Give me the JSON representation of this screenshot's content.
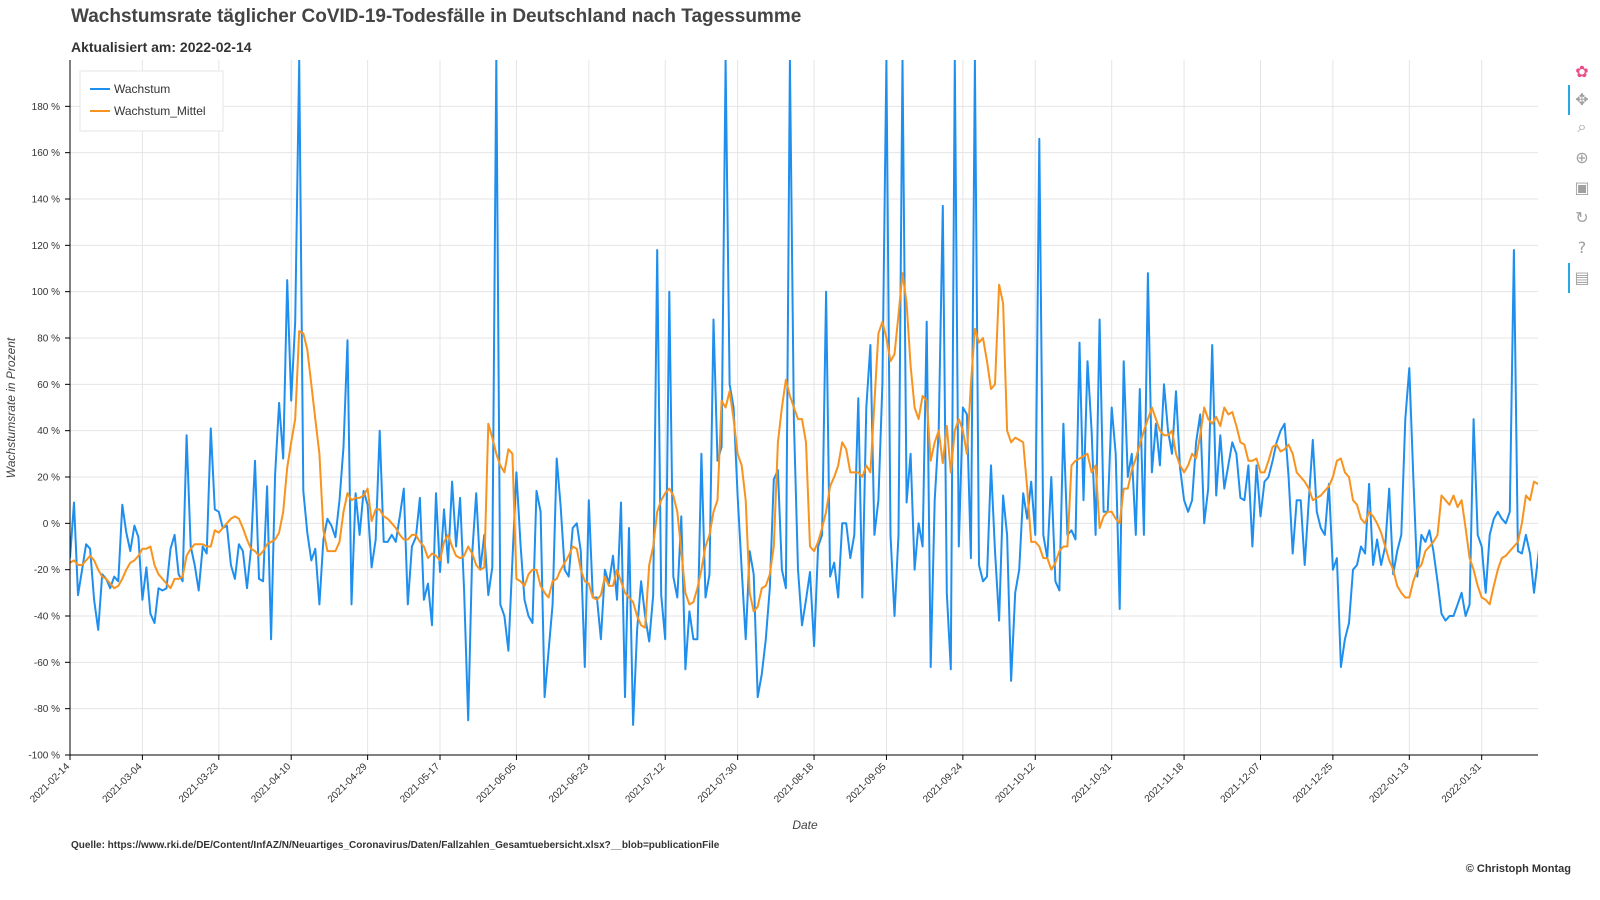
{
  "header": {
    "title": "Wachstumsrate täglicher CoVID-19-Todesfälle in Deutschland nach Tagessumme",
    "subtitle": "Aktualisiert am: 2022-02-14"
  },
  "footer": {
    "source": "Quelle: https://www.rki.de/DE/Content/InfAZ/N/Neuartiges_Coronavirus/Daten/Fallzahlen_Gesamtuebersicht.xlsx?__blob=publicationFile",
    "copyright": "© Christoph Montag"
  },
  "toolbar": {
    "tools": [
      {
        "icon": "bokeh-logo-icon",
        "glyph": "✿"
      },
      {
        "icon": "pan-icon",
        "glyph": "✥"
      },
      {
        "icon": "box-zoom-icon",
        "glyph": "⌕"
      },
      {
        "icon": "wheel-zoom-icon",
        "glyph": "⊕"
      },
      {
        "icon": "save-icon",
        "glyph": "▣"
      },
      {
        "icon": "reset-icon",
        "glyph": "↻"
      },
      {
        "icon": "help-icon",
        "glyph": "?"
      },
      {
        "icon": "hover-icon",
        "glyph": "▤"
      }
    ]
  },
  "chart_data": {
    "type": "line",
    "title": "Wachstumsrate täglicher CoVID-19-Todesfälle in Deutschland nach Tagessumme",
    "subtitle": "Aktualisiert am: 2022-02-14",
    "xlabel": "Date",
    "ylabel": "Wachstumsrate in Prozent",
    "x_range": [
      "2021-02-14",
      "2022-02-14"
    ],
    "ylim": [
      -100,
      200
    ],
    "y_ticks": [
      -100,
      -80,
      -60,
      -40,
      -20,
      0,
      20,
      40,
      60,
      80,
      100,
      120,
      140,
      160,
      180
    ],
    "y_tick_labels": [
      "-100 %",
      "-80 %",
      "-60 %",
      "-40 %",
      "-20 %",
      "0 %",
      "20 %",
      "40 %",
      "60 %",
      "80 %",
      "100 %",
      "120 %",
      "140 %",
      "160 %",
      "180 %"
    ],
    "x_ticks": [
      "2021-02-14",
      "2021-03-04",
      "2021-03-23",
      "2021-04-10",
      "2021-04-29",
      "2021-05-17",
      "2021-06-05",
      "2021-06-23",
      "2021-07-12",
      "2021-07-30",
      "2021-08-18",
      "2021-09-05",
      "2021-09-24",
      "2021-10-12",
      "2021-10-31",
      "2021-11-18",
      "2021-12-07",
      "2021-12-25",
      "2022-01-13",
      "2022-01-31"
    ],
    "grid": true,
    "legend_position": "top-left",
    "series": [
      {
        "name": "Wachstum",
        "color": "#1f8fef",
        "x_start": "2021-02-14",
        "step_days": 1,
        "values": [
          -15,
          9,
          -31,
          -20,
          -9,
          -11,
          -33,
          -46,
          -22,
          -24,
          -28,
          -23,
          -25,
          8,
          -4,
          -12,
          -1,
          -6,
          -33,
          -19,
          -39,
          -43,
          -28,
          -29,
          -28,
          -11,
          -5,
          -22,
          -25,
          38,
          -10,
          -18,
          -29,
          -10,
          -13,
          41,
          6,
          5,
          -2,
          -1,
          -18,
          -24,
          -9,
          -12,
          -28,
          -11,
          27,
          -24,
          -25,
          16,
          -50,
          21,
          52,
          28,
          105,
          53,
          87,
          200,
          14,
          -4,
          -16,
          -11,
          -35,
          -7,
          2,
          -1,
          -6,
          10,
          33,
          79,
          -35,
          13,
          -5,
          14,
          8,
          -19,
          -7,
          40,
          -8,
          -8,
          -5,
          -8,
          3,
          15,
          -35,
          -10,
          -6,
          11,
          -33,
          -26,
          -44,
          13,
          -21,
          6,
          -17,
          18,
          -10,
          11,
          -29,
          -85,
          -13,
          13,
          -20,
          -5,
          -31,
          -19,
          200,
          -35,
          -40,
          -55,
          -16,
          22,
          -9,
          -33,
          -40,
          -43,
          14,
          5,
          -75,
          -55,
          -35,
          28,
          7,
          -20,
          -23,
          -2,
          0,
          -12,
          -62,
          10,
          -32,
          -32,
          -50,
          -20,
          -26,
          -14,
          -33,
          9,
          -75,
          -2,
          -87,
          -46,
          -25,
          -40,
          -51,
          -31,
          118,
          -31,
          -50,
          100,
          -23,
          -32,
          3,
          -63,
          -38,
          -50,
          -50,
          30,
          -32,
          -22,
          88,
          27,
          33,
          200,
          60,
          50,
          12,
          -20,
          -50,
          -12,
          -22,
          -75,
          -65,
          -50,
          -28,
          19,
          23,
          -20,
          -28,
          200,
          44,
          -20,
          -44,
          -33,
          -21,
          -53,
          -10,
          -5,
          100,
          -23,
          -17,
          -32,
          0,
          0,
          -15,
          -5,
          54,
          -32,
          50,
          77,
          -5,
          10,
          60,
          200,
          -5,
          -40,
          -5,
          200,
          9,
          30,
          -20,
          0,
          -10,
          87,
          -62,
          10,
          40,
          137,
          -30,
          -63,
          200,
          -10,
          50,
          47,
          -15,
          200,
          -18,
          -25,
          -23,
          25,
          -12,
          -42,
          12,
          -5,
          -68,
          -30,
          -20,
          13,
          2,
          18,
          -5,
          166,
          -5,
          -15,
          20,
          -25,
          -29,
          43,
          -5,
          -3,
          -7,
          78,
          10,
          70,
          40,
          -5,
          88,
          5,
          5,
          50,
          30,
          -37,
          70,
          20,
          30,
          -5,
          58,
          -5,
          108,
          22,
          43,
          25,
          60,
          40,
          30,
          57,
          24,
          10,
          5,
          10,
          35,
          47,
          0,
          15,
          77,
          12,
          38,
          15,
          25,
          35,
          30,
          11,
          10,
          25,
          -10,
          25,
          3,
          18,
          20,
          27,
          35,
          40,
          43,
          20,
          -13,
          10,
          10,
          -18,
          10,
          36,
          5,
          -2,
          -5,
          17,
          -20,
          -15,
          -62,
          -50,
          -43,
          -20,
          -18,
          -10,
          -13,
          17,
          -18,
          -7,
          -18,
          -10,
          15,
          -22,
          -12,
          -5,
          45,
          67,
          20,
          -23,
          -5,
          -8,
          -3,
          -12,
          -25,
          -39,
          -42,
          -40,
          -40,
          -35,
          -30,
          -40,
          -35,
          45,
          -5,
          -10,
          -30,
          -5,
          2,
          5,
          2,
          0,
          5,
          118,
          -12,
          -13,
          -5,
          -13,
          -30,
          -15,
          0,
          40,
          45,
          32,
          15,
          41,
          -14
        ]
      },
      {
        "name": "Wachstum_Mittel",
        "color": "#f7931e",
        "x_start": "2021-02-14",
        "step_days": 1,
        "values": [
          -17,
          -16,
          -18,
          -18,
          -16,
          -14,
          -16,
          -20,
          -23,
          -24,
          -26,
          -28,
          -27,
          -24,
          -20,
          -17,
          -16,
          -14,
          -11,
          -11,
          -10,
          -18,
          -22,
          -24,
          -26,
          -28,
          -24,
          -24,
          -23,
          -14,
          -11,
          -9,
          -9,
          -9,
          -10,
          -10,
          -3,
          -4,
          -2,
          0,
          2,
          3,
          2,
          -2,
          -7,
          -11,
          -12,
          -14,
          -12,
          -9,
          -8,
          -7,
          -4,
          5,
          24,
          35,
          45,
          83,
          82,
          75,
          60,
          45,
          30,
          -3,
          -12,
          -12,
          -12,
          -8,
          5,
          13,
          10,
          11,
          11,
          12,
          15,
          1,
          6,
          6,
          3,
          2,
          0,
          -2,
          -5,
          -7,
          -7,
          -5,
          -5,
          -8,
          -10,
          -15,
          -13,
          -14,
          -16,
          -8,
          -5,
          -10,
          -14,
          -15,
          -14,
          -10,
          -13,
          -18,
          -20,
          -19,
          43,
          37,
          30,
          25,
          22,
          32,
          30,
          -24,
          -25,
          -27,
          -22,
          -20,
          -20,
          -27,
          -30,
          -32,
          -25,
          -24,
          -20,
          -17,
          -14,
          -10,
          -11,
          -20,
          -25,
          -26,
          -32,
          -33,
          -31,
          -23,
          -27,
          -27,
          -20,
          -25,
          -30,
          -32,
          -34,
          -40,
          -44,
          -45,
          -18,
          -10,
          5,
          10,
          13,
          15,
          12,
          5,
          -12,
          -30,
          -35,
          -34,
          -28,
          -20,
          -10,
          -5,
          5,
          10,
          53,
          50,
          57,
          45,
          30,
          25,
          10,
          -30,
          -38,
          -36,
          -28,
          -27,
          -22,
          -10,
          35,
          50,
          62,
          55,
          50,
          45,
          45,
          35,
          -10,
          -12,
          -8,
          -2,
          5,
          16,
          20,
          25,
          35,
          32,
          22,
          22,
          22,
          20,
          25,
          22,
          52,
          82,
          87,
          80,
          70,
          73,
          90,
          108,
          95,
          68,
          50,
          45,
          55,
          53,
          27,
          35,
          40,
          26,
          42,
          22,
          40,
          45,
          40,
          30,
          60,
          84,
          78,
          80,
          70,
          58,
          60,
          103,
          95,
          40,
          35,
          37,
          36,
          35,
          15,
          -8,
          -8,
          -10,
          -15,
          -15,
          -20,
          -17,
          -12,
          -10,
          -10,
          25,
          27,
          28,
          29,
          30,
          22,
          25,
          -2,
          3,
          5,
          5,
          2,
          0,
          15,
          15,
          23,
          28,
          34,
          40,
          45,
          50,
          45,
          40,
          38,
          38,
          40,
          30,
          25,
          22,
          25,
          30,
          28,
          38,
          50,
          45,
          43,
          46,
          42,
          50,
          47,
          48,
          42,
          35,
          34,
          27,
          27,
          28,
          22,
          22,
          27,
          33,
          34,
          31,
          32,
          34,
          30,
          22,
          20,
          18,
          15,
          10,
          11,
          12,
          14,
          16,
          20,
          27,
          28,
          22,
          20,
          10,
          8,
          2,
          0,
          5,
          3,
          0,
          -4,
          -10,
          -16,
          -20,
          -27,
          -30,
          -32,
          -32,
          -25,
          -20,
          -18,
          -12,
          -10,
          -8,
          -5,
          12,
          10,
          8,
          12,
          7,
          10,
          -2,
          -15,
          -20,
          -27,
          -32,
          -33,
          -35,
          -27,
          -20,
          -15,
          -14,
          -12,
          -10,
          -8,
          0,
          12,
          10,
          18,
          17,
          15,
          -9,
          -9,
          -5,
          5,
          10,
          20,
          17,
          22,
          23,
          22
        ]
      }
    ]
  }
}
